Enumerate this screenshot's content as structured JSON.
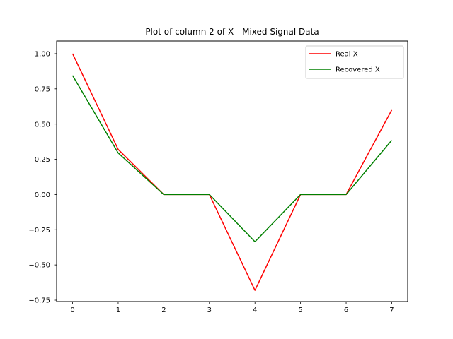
{
  "chart_data": {
    "type": "line",
    "title": "Plot of column 2 of X - Mixed Signal Data",
    "xlabel": "",
    "ylabel": "",
    "x": [
      0,
      1,
      2,
      3,
      4,
      5,
      6,
      7
    ],
    "xlim": [
      -0.35,
      7.35
    ],
    "ylim": [
      -0.76,
      1.09
    ],
    "x_ticks": [
      "0",
      "1",
      "2",
      "3",
      "4",
      "5",
      "6",
      "7"
    ],
    "y_ticks": [
      "1.00",
      "0.75",
      "0.50",
      "0.25",
      "0.00",
      "−0.25",
      "−0.50",
      "−0.75"
    ],
    "y_tick_values": [
      1.0,
      0.75,
      0.5,
      0.25,
      0.0,
      -0.25,
      -0.5,
      -0.75
    ],
    "grid": false,
    "legend_position": "top-right",
    "series": [
      {
        "name": "Real X",
        "color": "#ff0000",
        "values": [
          1.0,
          0.32,
          0.0,
          0.0,
          -0.68,
          0.0,
          0.0,
          0.6
        ]
      },
      {
        "name": "Recovered X",
        "color": "#008000",
        "values": [
          0.845,
          0.295,
          0.0,
          0.0,
          -0.335,
          0.0,
          0.0,
          0.385
        ]
      }
    ]
  }
}
